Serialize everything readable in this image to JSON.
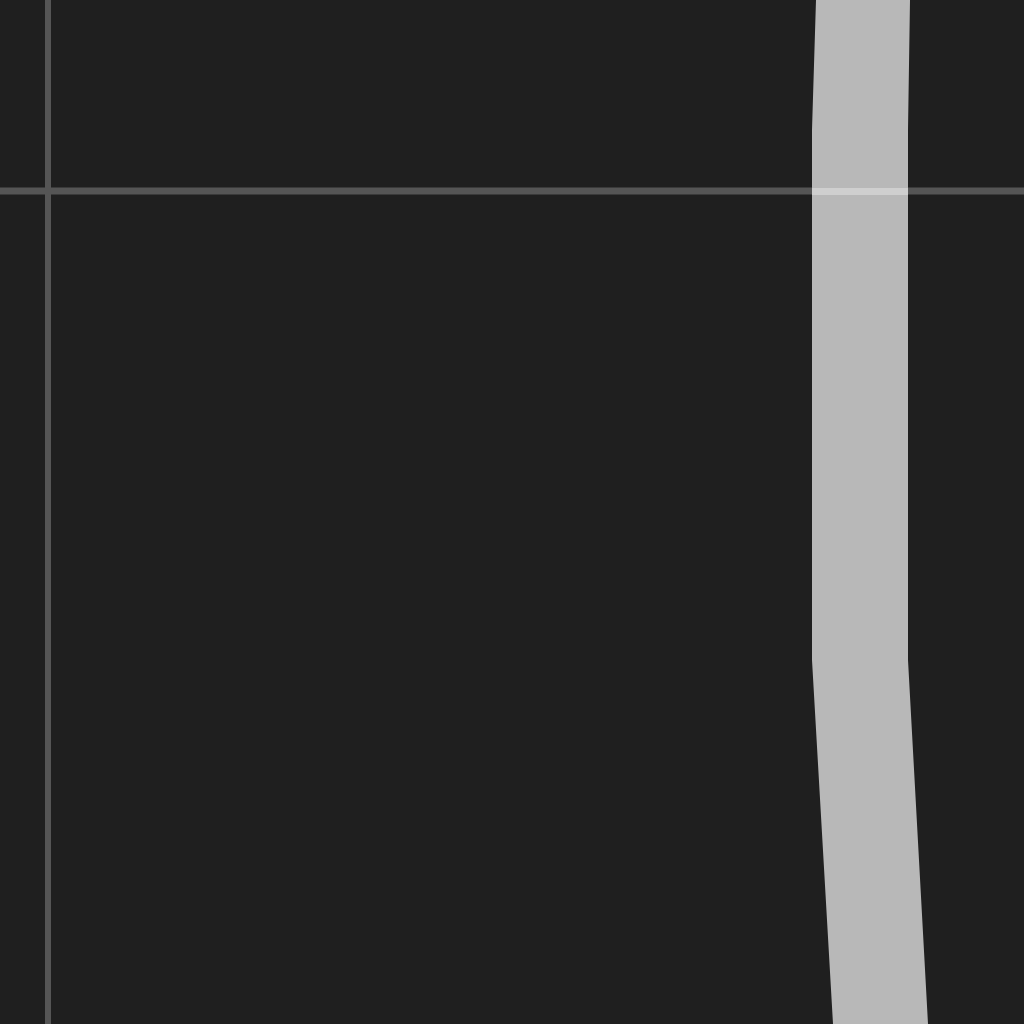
{
  "map": {
    "background_color": "#1f1f1f",
    "minor_road_color": "#555555",
    "major_road_color": "#b8b8b8",
    "crossing_highlight_color": "#cfcfcf",
    "roads": [
      {
        "id": "minor-road-vertical",
        "kind": "minor"
      },
      {
        "id": "minor-road-horizontal",
        "kind": "minor"
      },
      {
        "id": "major-road",
        "kind": "major"
      }
    ]
  }
}
